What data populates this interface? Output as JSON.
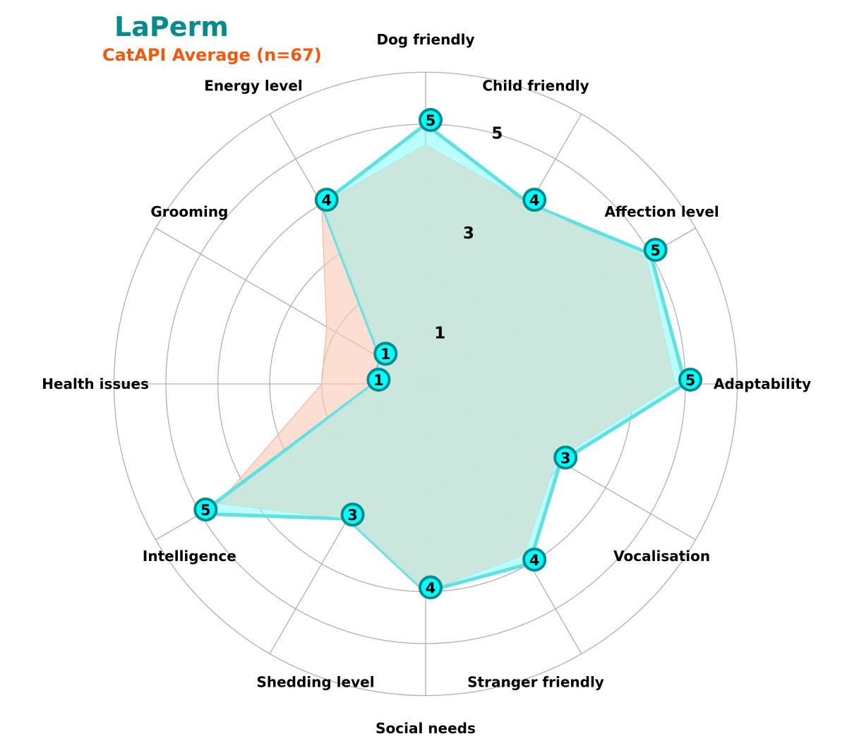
{
  "title": "LaPerm",
  "subtitle": "CatAPI Average (n=67)",
  "colors": {
    "breed_fill": "#7ffcfc",
    "breed_line": "#60e0e0",
    "breed_marker_fill": "#00ffff",
    "breed_marker_edge": "#058b8b",
    "average_fill": "#fcc8b4",
    "overlap_fill": "#cde5dc",
    "grid": "#b0b0b0",
    "title": "#058b8b",
    "subtitle": "#f05a0f",
    "text": "#000000"
  },
  "chart_data": {
    "type": "radar",
    "title": "LaPerm",
    "subtitle": "CatAPI Average (n=67)",
    "categories": [
      "Adaptability",
      "Affection level",
      "Child friendly",
      "Dog friendly",
      "Energy level",
      "Grooming",
      "Health issues",
      "Intelligence",
      "Shedding level",
      "Social needs",
      "Stranger friendly",
      "Vocalisation"
    ],
    "rlim": [
      0,
      5
    ],
    "radial_tick_labels": [
      "1",
      "3",
      "5"
    ],
    "grid": true,
    "series": [
      {
        "values": [
          5,
          5,
          4,
          5,
          4,
          1,
          1,
          5,
          3,
          4,
          4,
          3
        ],
        "labeled_points": true
      },
      {
        "values": [
          4.8,
          4.9,
          4.0,
          4.6,
          4.0,
          2.2,
          2.0,
          4.6,
          3.0,
          4.0,
          3.8,
          2.9
        ],
        "labeled_points": false
      }
    ]
  }
}
